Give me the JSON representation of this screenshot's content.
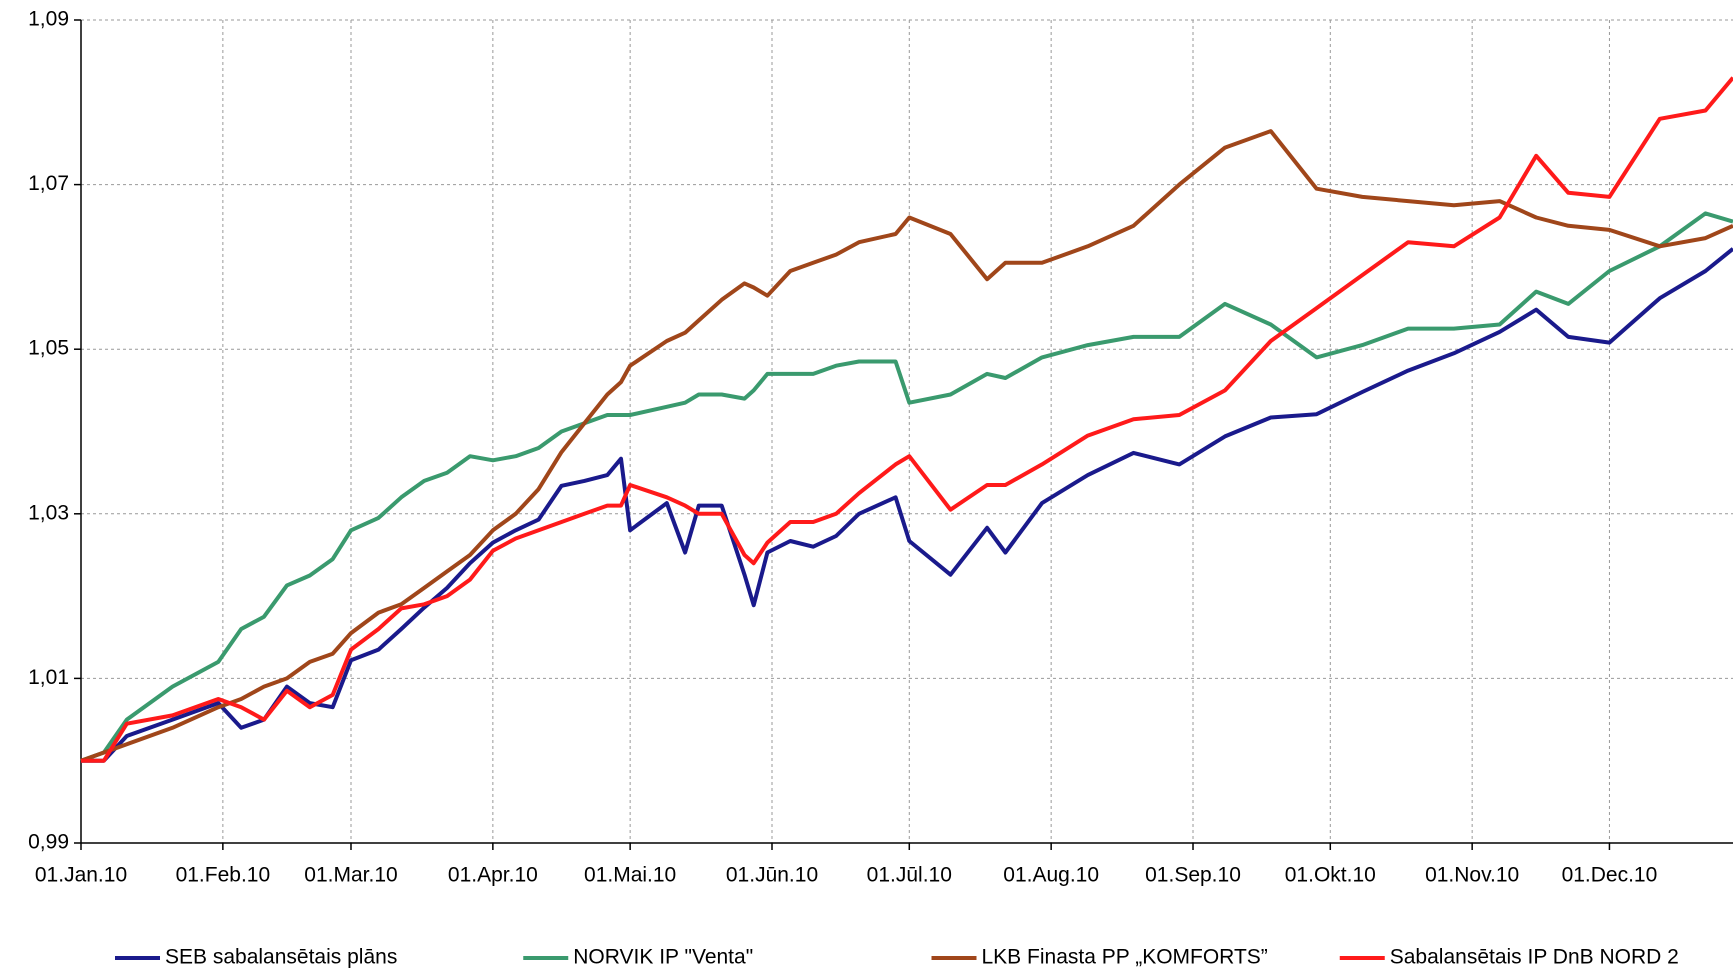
{
  "chart_data": {
    "type": "line",
    "x": [
      0,
      5,
      10,
      20,
      30,
      35,
      40,
      45,
      50,
      55,
      59,
      65,
      70,
      75,
      80,
      85,
      90,
      95,
      100,
      105,
      110,
      115,
      118,
      120,
      128,
      132,
      135,
      140,
      145,
      147,
      150,
      155,
      160,
      165,
      170,
      178,
      181,
      190,
      198,
      202,
      210,
      220,
      230,
      240,
      250,
      260,
      270,
      280,
      290,
      300,
      310,
      318,
      325,
      334,
      345,
      355,
      361
    ],
    "xlim": [
      0,
      361
    ],
    "xticks": [
      {
        "value": 0,
        "label": "01.Jan.10"
      },
      {
        "value": 31,
        "label": "01.Feb.10"
      },
      {
        "value": 59,
        "label": "01.Mar.10"
      },
      {
        "value": 90,
        "label": "01.Apr.10"
      },
      {
        "value": 120,
        "label": "01.Mai.10"
      },
      {
        "value": 151,
        "label": "01.Jūn.10"
      },
      {
        "value": 181,
        "label": "01.Jūl.10"
      },
      {
        "value": 212,
        "label": "01.Aug.10"
      },
      {
        "value": 243,
        "label": "01.Sep.10"
      },
      {
        "value": 273,
        "label": "01.Okt.10"
      },
      {
        "value": 304,
        "label": "01.Nov.10"
      },
      {
        "value": 334,
        "label": "01.Dec.10"
      }
    ],
    "ylim": [
      0.99,
      1.09
    ],
    "yticks": [
      {
        "value": 0.99,
        "label": "0,99"
      },
      {
        "value": 1.01,
        "label": "1,01"
      },
      {
        "value": 1.03,
        "label": "1,03"
      },
      {
        "value": 1.05,
        "label": "1,05"
      },
      {
        "value": 1.07,
        "label": "1,07"
      },
      {
        "value": 1.09,
        "label": "1,09"
      }
    ],
    "grid": true,
    "legend": "bottom",
    "series": [
      {
        "name": "SEB sabalansētais plāns",
        "color": "#1a1a8c",
        "values": [
          1.0,
          1.0,
          1.003,
          1.005,
          1.007,
          1.004,
          1.005,
          1.009,
          1.007,
          1.0065,
          1.0122,
          1.0135,
          1.016,
          1.0186,
          1.021,
          1.024,
          1.0265,
          1.028,
          1.0293,
          1.0334,
          1.034,
          1.0347,
          1.0367,
          1.028,
          1.0313,
          1.0253,
          1.031,
          1.031,
          1.0226,
          1.0189,
          1.0253,
          1.0267,
          1.026,
          1.0273,
          1.03,
          1.032,
          1.0267,
          1.0226,
          1.0283,
          1.0253,
          1.0313,
          1.0347,
          1.0374,
          1.036,
          1.0394,
          1.0417,
          1.0421,
          1.0448,
          1.0474,
          1.0495,
          1.0521,
          1.0548,
          1.0515,
          1.0508,
          1.0562,
          1.0595,
          1.0622
        ]
      },
      {
        "name": "NORVIK  IP \"Venta\"",
        "color": "#3a9a6e",
        "values": [
          1.0,
          1.001,
          1.005,
          1.009,
          1.012,
          1.016,
          1.0175,
          1.0213,
          1.0225,
          1.0245,
          1.028,
          1.0295,
          1.032,
          1.034,
          1.035,
          1.037,
          1.0365,
          1.037,
          1.038,
          1.04,
          1.041,
          1.042,
          1.042,
          1.042,
          1.043,
          1.0435,
          1.0445,
          1.0445,
          1.044,
          1.045,
          1.047,
          1.047,
          1.047,
          1.048,
          1.0485,
          1.0485,
          1.0435,
          1.0445,
          1.047,
          1.0465,
          1.049,
          1.0505,
          1.0515,
          1.0515,
          1.0555,
          1.053,
          1.049,
          1.0505,
          1.0525,
          1.0525,
          1.053,
          1.057,
          1.0555,
          1.0595,
          1.0625,
          1.0665,
          1.0655
        ]
      },
      {
        "name": "LKB Finasta PP „KOMFORTS”",
        "color": "#a0461a",
        "values": [
          1.0,
          1.001,
          1.002,
          1.004,
          1.0065,
          1.0075,
          1.009,
          1.01,
          1.012,
          1.013,
          1.0155,
          1.018,
          1.019,
          1.021,
          1.023,
          1.025,
          1.028,
          1.03,
          1.033,
          1.0375,
          1.041,
          1.0445,
          1.046,
          1.048,
          1.051,
          1.052,
          1.0535,
          1.056,
          1.058,
          1.0575,
          1.0565,
          1.0595,
          1.0605,
          1.0615,
          1.063,
          1.064,
          1.066,
          1.064,
          1.0585,
          1.0605,
          1.0605,
          1.0625,
          1.065,
          1.07,
          1.0745,
          1.0765,
          1.0695,
          1.0685,
          1.068,
          1.0675,
          1.068,
          1.066,
          1.065,
          1.0645,
          1.0625,
          1.0635,
          1.065
        ]
      },
      {
        "name": "Sabalansētais IP DnB NORD 2",
        "color": "#ff1a1a",
        "values": [
          1.0,
          1.0,
          1.0045,
          1.0055,
          1.0075,
          1.0065,
          1.005,
          1.0085,
          1.0065,
          1.008,
          1.0135,
          1.016,
          1.0185,
          1.019,
          1.02,
          1.022,
          1.0255,
          1.027,
          1.028,
          1.029,
          1.03,
          1.031,
          1.031,
          1.0335,
          1.032,
          1.031,
          1.03,
          1.03,
          1.025,
          1.024,
          1.0265,
          1.029,
          1.029,
          1.03,
          1.0325,
          1.036,
          1.037,
          1.0305,
          1.0335,
          1.0335,
          1.036,
          1.0395,
          1.0415,
          1.042,
          1.045,
          1.051,
          1.055,
          1.059,
          1.063,
          1.0625,
          1.066,
          1.0735,
          1.069,
          1.0685,
          1.078,
          1.079,
          1.083
        ]
      }
    ]
  }
}
